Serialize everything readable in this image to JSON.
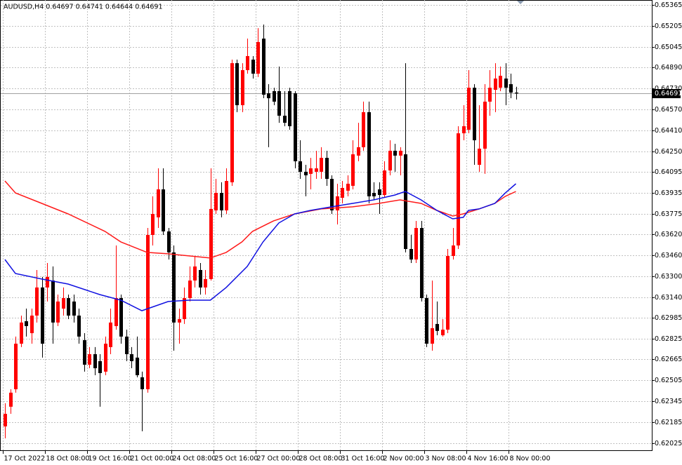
{
  "chart_data": {
    "type": "candlestick",
    "title": "AUDUSD,H4  0.64697 0.64741 0.64644 0.64691",
    "categories": [
      "17 Oct 2022",
      null,
      null,
      null,
      null,
      null,
      null,
      null,
      "18 Oct 08:00",
      null,
      null,
      null,
      null,
      null,
      null,
      null,
      "19 Oct 16:00",
      null,
      null,
      null,
      null,
      null,
      null,
      null,
      "21 Oct 00:00",
      null,
      null,
      null,
      null,
      null,
      null,
      null,
      "24 Oct 08:00",
      null,
      null,
      null,
      null,
      null,
      null,
      null,
      "25 Oct 16:00",
      null,
      null,
      null,
      null,
      null,
      null,
      null,
      "27 Oct 00:00",
      null,
      null,
      null,
      null,
      null,
      null,
      null,
      "28 Oct 08:00",
      null,
      null,
      null,
      null,
      null,
      null,
      null,
      "31 Oct 16:00",
      null,
      null,
      null,
      null,
      null,
      null,
      null,
      "2 Nov 00:00",
      null,
      null,
      null,
      null,
      null,
      null,
      null,
      "3 Nov 08:00",
      null,
      null,
      null,
      null,
      null,
      null,
      null,
      "4 Nov 16:00",
      null,
      null,
      null,
      null,
      null,
      null,
      null,
      "8 Nov 00:00",
      null
    ],
    "open": [
      0.62155,
      0.62305,
      0.62438,
      0.62785,
      0.62956,
      0.62865,
      0.62999,
      0.63213,
      0.63213,
      0.63266,
      0.62946,
      0.63052,
      0.63132,
      0.63106,
      0.62999,
      0.62812,
      0.62625,
      0.62705,
      0.62652,
      0.62572,
      0.62759,
      0.62919,
      0.63132,
      0.62839,
      0.62705,
      0.62679,
      0.62529,
      0.62438,
      0.63613,
      0.63747,
      0.6396,
      0.6364,
      0.6348,
      0.62946,
      0.62972,
      0.63132,
      0.63266,
      0.63346,
      0.63213,
      0.63277,
      0.638,
      0.63933,
      0.638,
      0.64014,
      0.64921,
      0.64601,
      0.64868,
      0.64948,
      0.64841,
      0.65108,
      0.64692,
      0.64708,
      0.64708,
      0.64521,
      0.64708,
      0.64692,
      0.64174,
      0.64094,
      0.64078,
      0.64094,
      0.64094,
      0.642,
      0.6404,
      0.638,
      0.63896,
      0.6395,
      0.63987,
      0.64217,
      0.64281,
      0.64548,
      0.63933,
      0.6396,
      0.63917,
      0.64104,
      0.64254,
      0.64217,
      0.64227,
      0.63506,
      0.63426,
      0.63666,
      0.63132,
      0.62785,
      0.62935,
      0.62849,
      0.62892,
      0.63453,
      0.63533,
      0.64387,
      0.64414,
      0.64734,
      0.64147,
      0.6427,
      0.64628,
      0.64718,
      0.64734,
      0.64804,
      0.64761,
      0.64697
    ],
    "high": [
      0.62331,
      0.62438,
      0.62839,
      0.62999,
      0.63052,
      0.63052,
      0.63346,
      0.63293,
      0.63399,
      0.63373,
      0.63159,
      0.63213,
      0.63159,
      0.63159,
      0.63052,
      0.62865,
      0.62759,
      0.62759,
      0.62705,
      0.62839,
      0.63052,
      0.63533,
      0.63159,
      0.62892,
      0.62759,
      0.62839,
      0.62572,
      0.63666,
      0.63907,
      0.6412,
      0.6412,
      0.63666,
      0.63533,
      0.63052,
      0.63213,
      0.63373,
      0.63453,
      0.63399,
      0.63346,
      0.6412,
      0.6404,
      0.64014,
      0.6412,
      0.64948,
      0.64948,
      0.64921,
      0.65108,
      0.64975,
      0.65188,
      0.65215,
      0.64761,
      0.64734,
      0.64895,
      0.64708,
      0.64734,
      0.64708,
      0.64334,
      0.64147,
      0.642,
      0.64254,
      0.64281,
      0.64254,
      0.64067,
      0.64003,
      0.64024,
      0.64067,
      0.64334,
      0.64467,
      0.64628,
      0.64628,
      0.64014,
      0.64014,
      0.64174,
      0.64334,
      0.64307,
      0.64281,
      0.64921,
      0.63613,
      0.6372,
      0.6372,
      0.63159,
      0.63266,
      0.63106,
      0.62972,
      0.63506,
      0.63666,
      0.64441,
      0.64601,
      0.64868,
      0.64761,
      0.64601,
      0.64761,
      0.64868,
      0.64921,
      0.64895,
      0.64921,
      0.64841,
      0.64741
    ],
    "low": [
      0.62064,
      0.62251,
      0.62412,
      0.62759,
      0.62839,
      0.62785,
      0.62946,
      0.62679,
      0.63106,
      0.62785,
      0.62919,
      0.62999,
      0.62972,
      0.62946,
      0.62785,
      0.62572,
      0.62598,
      0.62545,
      0.62305,
      0.62545,
      0.62705,
      0.62892,
      0.62785,
      0.62652,
      0.62598,
      0.62529,
      0.62118,
      0.62412,
      0.63533,
      0.63666,
      0.63613,
      0.63426,
      0.62732,
      0.62785,
      0.62935,
      0.63106,
      0.63213,
      0.63159,
      0.63159,
      0.63266,
      0.63773,
      0.63747,
      0.63773,
      0.63987,
      0.64548,
      0.64548,
      0.64841,
      0.64804,
      0.64815,
      0.64654,
      0.64281,
      0.64601,
      0.64467,
      0.64441,
      0.64414,
      0.6412,
      0.6404,
      0.63907,
      0.6396,
      0.6404,
      0.6404,
      0.63987,
      0.63773,
      0.63693,
      0.63853,
      0.63907,
      0.6396,
      0.64174,
      0.64254,
      0.63853,
      0.6388,
      0.63773,
      0.63896,
      0.64067,
      0.64094,
      0.64067,
      0.6348,
      0.63399,
      0.63399,
      0.63106,
      0.62759,
      0.62732,
      0.62849,
      0.62839,
      0.62865,
      0.63426,
      0.63506,
      0.64334,
      0.64387,
      0.64147,
      0.64094,
      0.64078,
      0.64521,
      0.64548,
      0.64708,
      0.64601,
      0.64654,
      0.64644
    ],
    "close": [
      0.62251,
      0.62412,
      0.62785,
      0.62946,
      0.62919,
      0.62999,
      0.63213,
      0.62785,
      0.63293,
      0.62946,
      0.63106,
      0.63132,
      0.62999,
      0.62999,
      0.62839,
      0.62625,
      0.62705,
      0.62598,
      0.62561,
      0.62785,
      0.62946,
      0.63132,
      0.62839,
      0.62705,
      0.62652,
      0.62545,
      0.62438,
      0.63613,
      0.63773,
      0.6396,
      0.6364,
      0.6348,
      0.62946,
      0.62972,
      0.63132,
      0.63266,
      0.63373,
      0.63213,
      0.63277,
      0.63811,
      0.63933,
      0.638,
      0.64024,
      0.64921,
      0.64601,
      0.64868,
      0.64975,
      0.64841,
      0.65082,
      0.64681,
      0.64654,
      0.64628,
      0.64521,
      0.64467,
      0.64441,
      0.64174,
      0.64094,
      0.64067,
      0.6412,
      0.6412,
      0.642,
      0.6404,
      0.638,
      0.63907,
      0.63971,
      0.64003,
      0.64227,
      0.64281,
      0.64548,
      0.63907,
      0.63907,
      0.63917,
      0.64104,
      0.64254,
      0.64217,
      0.64254,
      0.63506,
      0.63426,
      0.63666,
      0.63132,
      0.62785,
      0.62903,
      0.62882,
      0.62892,
      0.63453,
      0.63533,
      0.64387,
      0.64441,
      0.64734,
      0.64334,
      0.6427,
      0.64628,
      0.64734,
      0.64804,
      0.64825,
      0.64734,
      0.64697,
      0.64691
    ],
    "up_color": "#ff0000",
    "down_color": "#000000",
    "overlays": [
      {
        "color": "#ff1a1a",
        "x": [
          0,
          2,
          7,
          12,
          19,
          22,
          27,
          31,
          35,
          39,
          42,
          45,
          47,
          51,
          55,
          60,
          66,
          71,
          75,
          79,
          82,
          85,
          87,
          90,
          93,
          95,
          97
        ],
        "values": [
          0.64024,
          0.63933,
          0.63853,
          0.63773,
          0.6364,
          0.6356,
          0.6348,
          0.63469,
          0.63453,
          0.63437,
          0.6348,
          0.6356,
          0.6364,
          0.6372,
          0.63773,
          0.63811,
          0.63827,
          0.63853,
          0.6388,
          0.63853,
          0.638,
          0.63757,
          0.63773,
          0.63811,
          0.63853,
          0.63907,
          0.63944
        ]
      },
      {
        "color": "#1010e0",
        "x": [
          0,
          2,
          7,
          12,
          18,
          22,
          26,
          31,
          35,
          39,
          42,
          46,
          49,
          52,
          55,
          58,
          62,
          66,
          70,
          74,
          76,
          79,
          82,
          85,
          87,
          88,
          90,
          93,
          95,
          97
        ],
        "values": [
          0.63426,
          0.63319,
          0.63277,
          0.63239,
          0.63159,
          0.63116,
          0.63036,
          0.63106,
          0.63116,
          0.63116,
          0.63213,
          0.63373,
          0.6356,
          0.63704,
          0.63773,
          0.638,
          0.63827,
          0.63853,
          0.6388,
          0.63917,
          0.63944,
          0.6388,
          0.638,
          0.63736,
          0.63747,
          0.638,
          0.63811,
          0.63853,
          0.63933,
          0.64003
        ]
      }
    ],
    "last_price": 0.64691,
    "ylim": [
      0.61968,
      0.65402
    ],
    "yticks": [
      0.65365,
      0.65205,
      0.65045,
      {
        "value": 0.6489,
        "label": "0.64890"
      },
      {
        "value": 0.6473,
        "label": "0.64730"
      },
      {
        "value": 0.6457,
        "label": "0.64570"
      },
      {
        "value": 0.6441,
        "label": "0.64410"
      },
      {
        "value": 0.6425,
        "label": "0.64250"
      },
      0.64095,
      0.63935,
      0.63775,
      {
        "value": 0.6362,
        "label": "0.63620"
      },
      {
        "value": 0.6346,
        "label": "0.63460"
      },
      {
        "value": 0.633,
        "label": "0.63300"
      },
      {
        "value": 0.6314,
        "label": "0.63140"
      },
      0.62985,
      0.62825,
      0.62665,
      0.62505,
      0.62345,
      0.62185,
      0.62025
    ],
    "grid": true
  }
}
